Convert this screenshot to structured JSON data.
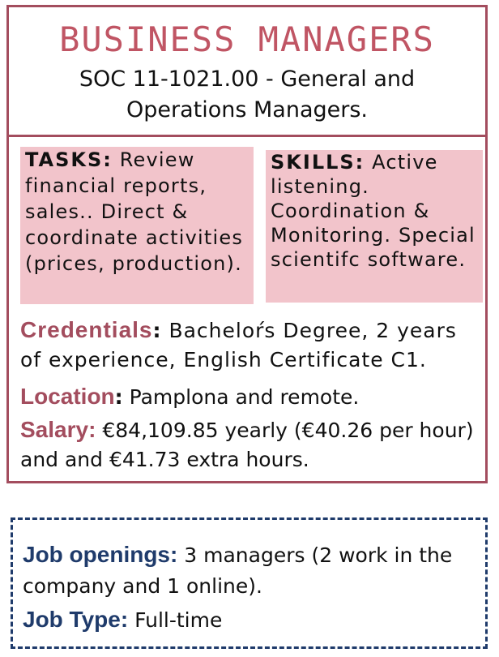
{
  "header": {
    "title": "BUSINESS MANAGERS",
    "subtitle": "SOC 11-1021.00 - General and Operations Managers."
  },
  "tasks": {
    "label": "TASKS:",
    "text": "Review financial reports, sales.. Direct & coordinate activities (prices, production)."
  },
  "skills": {
    "label": "SKILLS:",
    "text": "Active listening. Coordination & Monitoring. Special scientifc software."
  },
  "credentials": {
    "label": "Credentials",
    "text": "Bacheloŕs Degree, 2 years of experience, English Certificate C1."
  },
  "location": {
    "label": "Location",
    "text": "Pamplona and remote."
  },
  "salary": {
    "label": "Salary:",
    "text": "€84,109.85 yearly (€40.26 per hour) and and €41.73 extra hours."
  },
  "openings": {
    "label": "Job openings:",
    "text": "3 managers (2 work in the company and 1 online)."
  },
  "job_type": {
    "label": "Job Type:",
    "text": "Full-time"
  },
  "colors": {
    "accent": "#a34d5e",
    "title": "#c05564",
    "box_fill": "#f2c4cb",
    "navy": "#1f3b6b"
  }
}
